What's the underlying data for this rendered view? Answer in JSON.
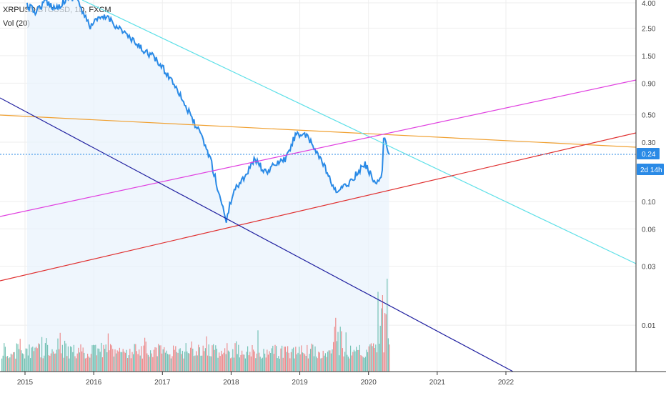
{
  "header": {
    "symbol_line": "XRPUSD/BTCUSD, 1D, FXCM",
    "indicator_line": "Vol (20)"
  },
  "chart_data": {
    "type": "line",
    "yscale": "log",
    "y_ticks": [
      "4.00",
      "2.50",
      "1.50",
      "0.90",
      "0.50",
      "0.30",
      "0.10",
      "0.06",
      "0.03",
      "0.01"
    ],
    "x_ticks": [
      "2015",
      "2016",
      "2017",
      "2018",
      "2019",
      "2020",
      "2021",
      "2022"
    ],
    "price_badge": "0.24",
    "countdown_badge": "2d 14h",
    "colors": {
      "price": "#2a8ae6",
      "area": "#e8f2fc",
      "vol_up": "#5fb8a8",
      "vol_down": "#ec7a7a",
      "grid": "#eeeeee",
      "orange": "#f0a030",
      "cyan": "#5fe0e8",
      "magenta": "#e040e0",
      "red": "#e03030",
      "navy": "#2020a0",
      "badge": "#2a8ae6"
    },
    "price_series": [
      [
        "2015.03",
        3.8
      ],
      [
        "2015.15",
        3.4
      ],
      [
        "2015.30",
        4.1
      ],
      [
        "2015.45",
        3.6
      ],
      [
        "2015.60",
        4.3
      ],
      [
        "2015.75",
        4.5
      ],
      [
        "2015.85",
        3.2
      ],
      [
        "2015.95",
        2.6
      ],
      [
        "2016.05",
        2.9
      ],
      [
        "2016.20",
        3.1
      ],
      [
        "2016.30",
        2.7
      ],
      [
        "2016.45",
        2.3
      ],
      [
        "2016.55",
        2.0
      ],
      [
        "2016.70",
        1.7
      ],
      [
        "2016.85",
        1.5
      ],
      [
        "2017.00",
        1.2
      ],
      [
        "2017.20",
        0.85
      ],
      [
        "2017.40",
        0.5
      ],
      [
        "2017.55",
        0.35
      ],
      [
        "2017.70",
        0.22
      ],
      [
        "2017.80",
        0.13
      ],
      [
        "2017.93",
        0.07
      ],
      [
        "2018.03",
        0.12
      ],
      [
        "2018.20",
        0.16
      ],
      [
        "2018.35",
        0.22
      ],
      [
        "2018.50",
        0.17
      ],
      [
        "2018.65",
        0.2
      ],
      [
        "2018.80",
        0.22
      ],
      [
        "2018.95",
        0.36
      ],
      [
        "2019.10",
        0.33
      ],
      [
        "2019.25",
        0.25
      ],
      [
        "2019.40",
        0.17
      ],
      [
        "2019.50",
        0.12
      ],
      [
        "2019.65",
        0.13
      ],
      [
        "2019.80",
        0.16
      ],
      [
        "2019.95",
        0.2
      ],
      [
        "2020.10",
        0.14
      ],
      [
        "2020.20",
        0.17
      ],
      [
        "2020.22",
        0.33
      ],
      [
        "2020.30",
        0.24
      ]
    ]
  }
}
